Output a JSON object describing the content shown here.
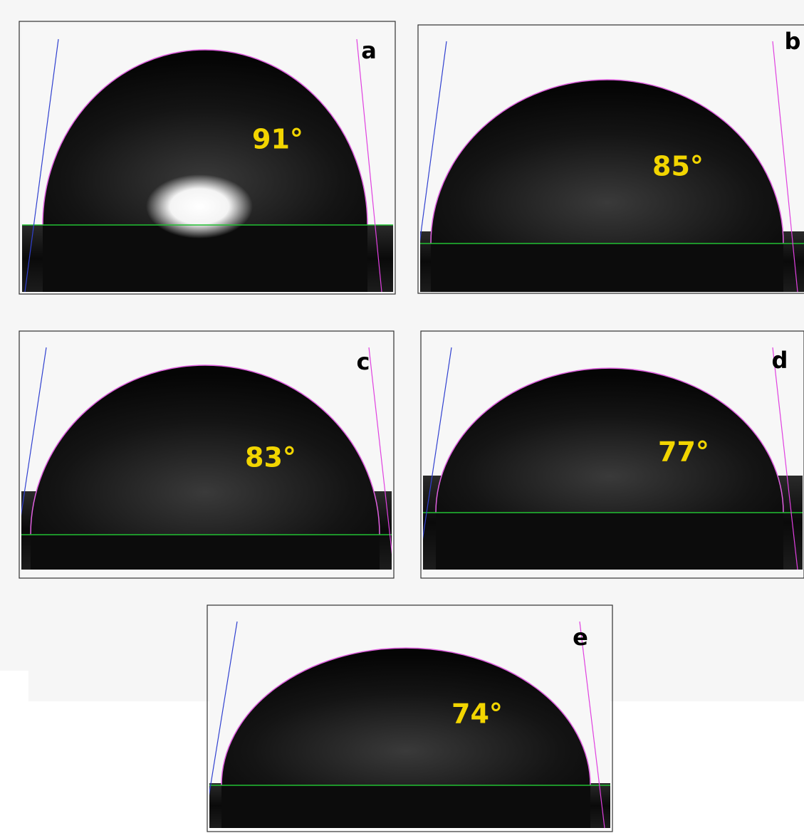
{
  "panels": [
    {
      "label": "a",
      "angle": "91°"
    },
    {
      "label": "b",
      "angle": "85°"
    },
    {
      "label": "c",
      "angle": "83°"
    },
    {
      "label": "d",
      "angle": "77°"
    },
    {
      "label": "e",
      "angle": "74°"
    }
  ]
}
